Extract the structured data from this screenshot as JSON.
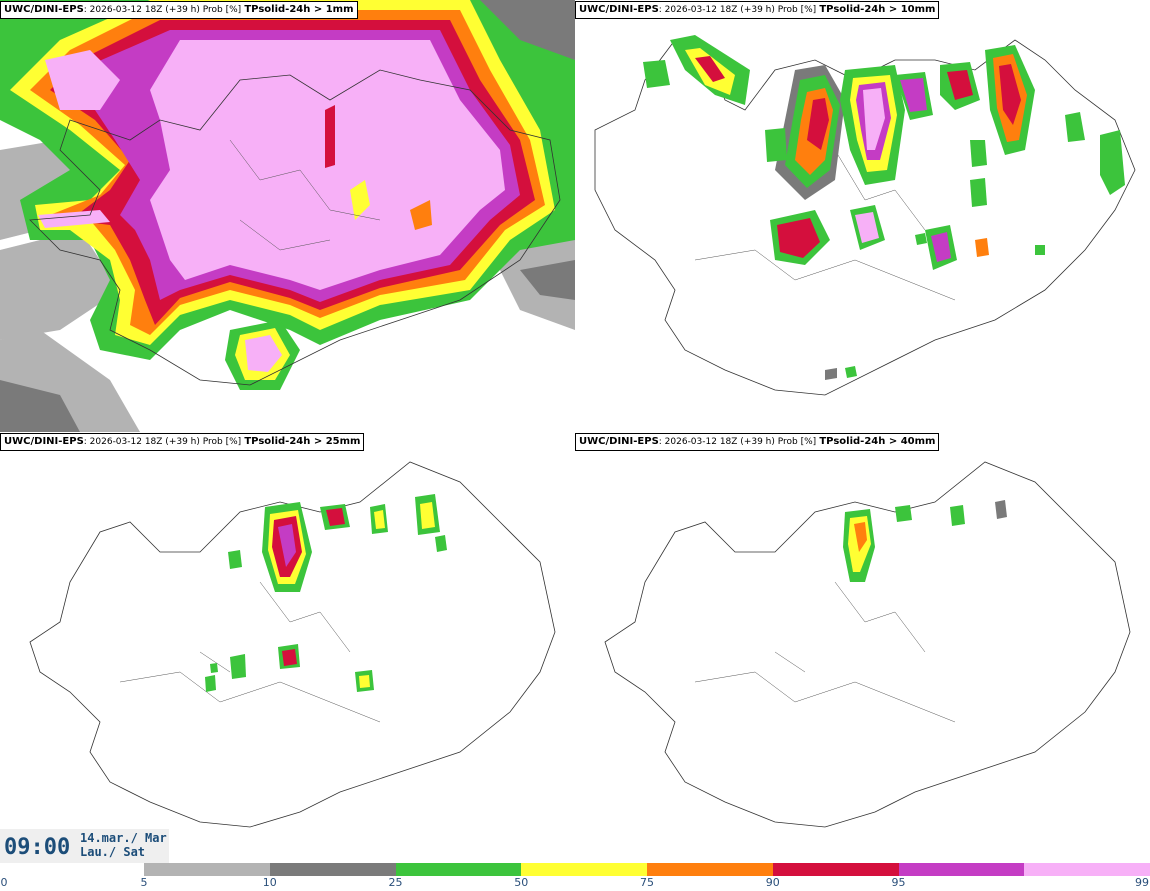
{
  "panels": [
    {
      "model": "UWC/DINI-EPS",
      "run": ": 2026-03-12 18Z (+39 h) Prob [%]",
      "param": "TPsolid-24h > 1mm"
    },
    {
      "model": "UWC/DINI-EPS",
      "run": ": 2026-03-12 18Z (+39 h) Prob [%]",
      "param": "TPsolid-24h > 10mm"
    },
    {
      "model": "UWC/DINI-EPS",
      "run": ": 2026-03-12 18Z (+39 h) Prob [%]",
      "param": "TPsolid-24h > 25mm"
    },
    {
      "model": "UWC/DINI-EPS",
      "run": ": 2026-03-12 18Z (+39 h) Prob [%]",
      "param": "TPsolid-24h > 40mm"
    }
  ],
  "valid_time": {
    "time": "09:00",
    "date_line1": "14.mar./ Mar",
    "date_line2": "Lau./ Sat"
  },
  "colorbar": {
    "ticks": [
      "0",
      "5",
      "10",
      "25",
      "50",
      "75",
      "90",
      "95",
      "99"
    ],
    "colors": [
      "#ffffff",
      "#b3b3b3",
      "#7a7a7a",
      "#3cc43c",
      "#ffff33",
      "#ff7f0e",
      "#d40f3d",
      "#c43cc4",
      "#f7b0f7"
    ]
  }
}
